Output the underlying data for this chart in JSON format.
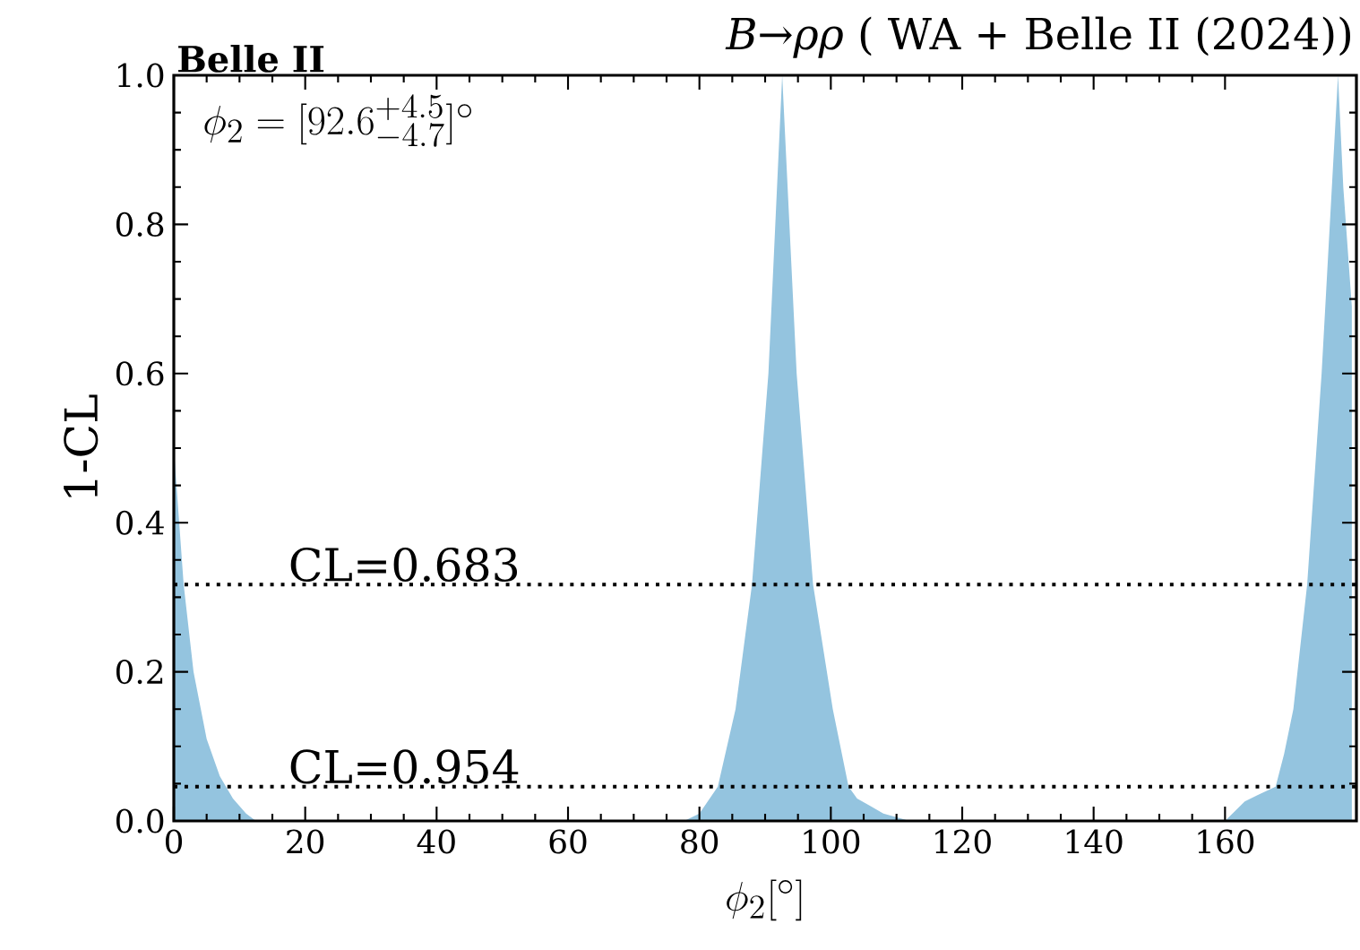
{
  "chart_data": {
    "type": "area",
    "title": "*B*→*ρρ* ( WA + Belle II (2024))",
    "xlabel": "\\phi_2[^\\circ]",
    "ylabel": "1-CL",
    "annotations": [
      "**Belle II**",
      "\\phi_2 = [92.6^{+4.5}_{-4.7}]^\\circ",
      "CL=0.683",
      "CL=0.954"
    ],
    "x": [
      0,
      1.5,
      3,
      5,
      7,
      9,
      11,
      12.5,
      77.7,
      80,
      82.8,
      85.5,
      88,
      90.5,
      92.6,
      94.8,
      97.3,
      100.3,
      102.7,
      104,
      106,
      108,
      112,
      160,
      163,
      165,
      167.7,
      169,
      170.4,
      172.5,
      174.7,
      177.2,
      178,
      179.3
    ],
    "series": [
      {
        "color": "#94c4df",
        "values": [
          0.5,
          0.317,
          0.2,
          0.11,
          0.06,
          0.03,
          0.01,
          0,
          0,
          0.01,
          0.046,
          0.15,
          0.317,
          0.6,
          1.0,
          0.6,
          0.317,
          0.15,
          0.046,
          0.03,
          0.02,
          0.01,
          0,
          0,
          0.026,
          0.035,
          0.046,
          0.09,
          0.15,
          0.317,
          0.6,
          1.0,
          0.85,
          0.69
        ]
      }
    ],
    "xlim": [
      0,
      180
    ],
    "ylim": [
      0,
      1
    ],
    "xticks": [
      0,
      20,
      40,
      60,
      80,
      100,
      120,
      140,
      160
    ],
    "yticks": [
      {
        "value": 0,
        "label": "0.0"
      },
      {
        "value": 0.2,
        "label": "0.2"
      },
      {
        "value": 0.4,
        "label": "0.4"
      },
      {
        "value": 0.6,
        "label": "0.6"
      },
      {
        "value": 0.8,
        "label": "0.8"
      },
      {
        "value": 1,
        "label": "1.0"
      }
    ],
    "ref_lines": [
      {
        "axis": "y",
        "value": 0.317,
        "line_style": "dotted"
      },
      {
        "axis": "y",
        "value": 0.046,
        "line_style": "dotted"
      }
    ]
  }
}
